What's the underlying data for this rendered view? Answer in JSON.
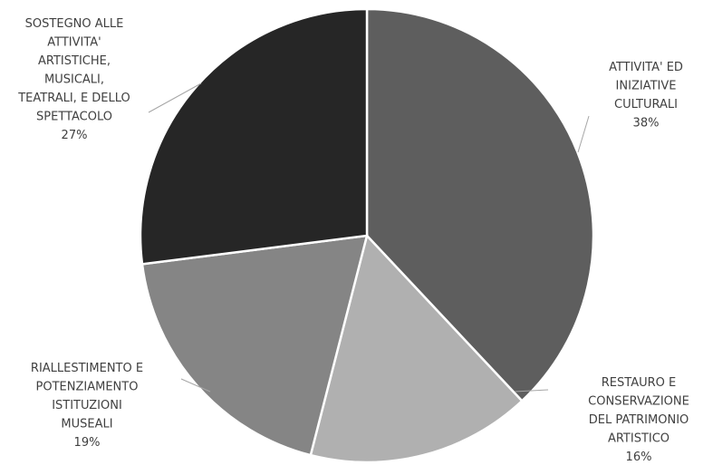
{
  "chart_data": {
    "type": "pie",
    "title": "",
    "slices": [
      {
        "label": [
          "ATTIVITA' ED",
          "INIZIATIVE",
          "CULTURALI"
        ],
        "value": 38,
        "display": "38%",
        "color": "#5e5e5e"
      },
      {
        "label": [
          "RESTAURO E",
          "CONSERVAZIONE",
          "DEL PATRIMONIO",
          "ARTISTICO"
        ],
        "value": 16,
        "display": "16%",
        "color": "#b0b0b0"
      },
      {
        "label": [
          "RIALLESTIMENTO E",
          "POTENZIAMENTO",
          "ISTITUZIONI",
          "MUSEALI"
        ],
        "value": 19,
        "display": "19%",
        "color": "#858585"
      },
      {
        "label": [
          "SOSTEGNO ALLE",
          "ATTIVITA'",
          "ARTISTICHE,",
          "MUSICALI,",
          "TEATRALI, E DELLO",
          "SPETTACOLO"
        ],
        "value": 27,
        "display": "27%",
        "color": "#262626"
      }
    ],
    "legend": "none",
    "data_labels": "outside with leader lines"
  }
}
